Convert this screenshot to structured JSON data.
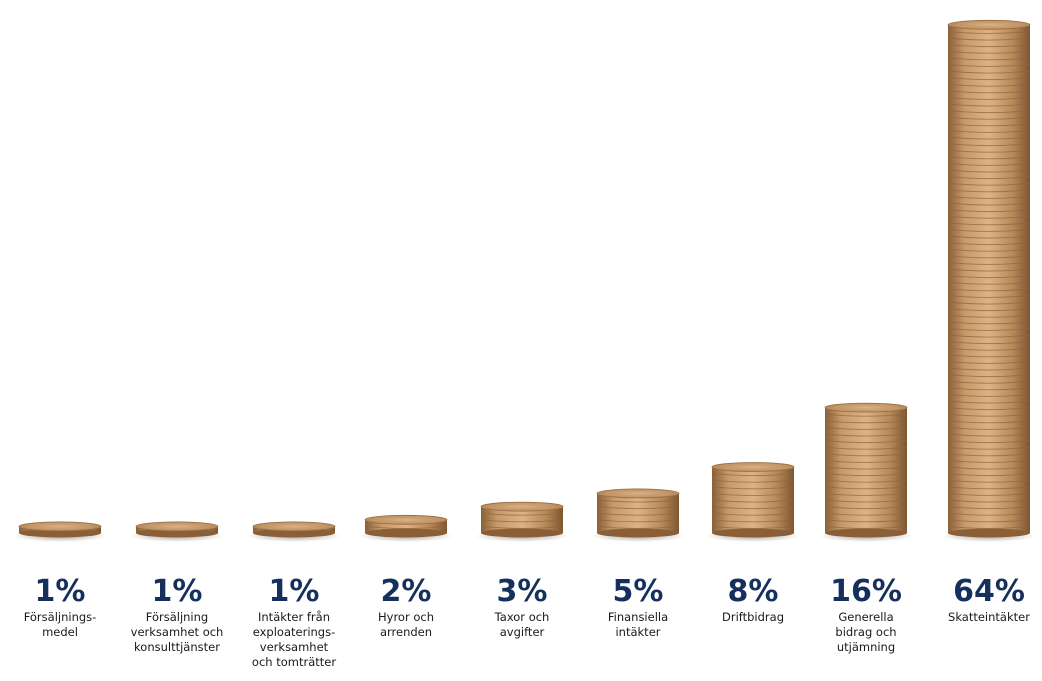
{
  "chart_data": {
    "type": "bar",
    "title": "",
    "xlabel": "",
    "ylabel": "",
    "categories": [
      "Försäljnings-\nmedel",
      "Försäljning\nverksamhet och\nkonsulttjänster",
      "Intäkter från\nexploaterings-\nverksamhet\noch tomträtter",
      "Hyror och\narrenden",
      "Taxor och\navgifter",
      "Finansiella\nintäkter",
      "Driftbidrag",
      "Generella\nbidrag och\nutjämning",
      "Skatteintäkter"
    ],
    "values": [
      1,
      1,
      1,
      2,
      3,
      5,
      8,
      16,
      64
    ],
    "value_labels": [
      "1%",
      "1%",
      "1%",
      "2%",
      "3%",
      "5%",
      "8%",
      "16%",
      "64%"
    ],
    "unit": "%",
    "ylim": [
      0,
      64
    ],
    "grid": false,
    "legend": "none"
  },
  "colors": {
    "coin_face": "#b98d5e",
    "coin_top": "#d6ab7c",
    "coin_shadow": "#7a5533",
    "label_blue": "#16305e",
    "label_black": "#1a1a1a"
  }
}
